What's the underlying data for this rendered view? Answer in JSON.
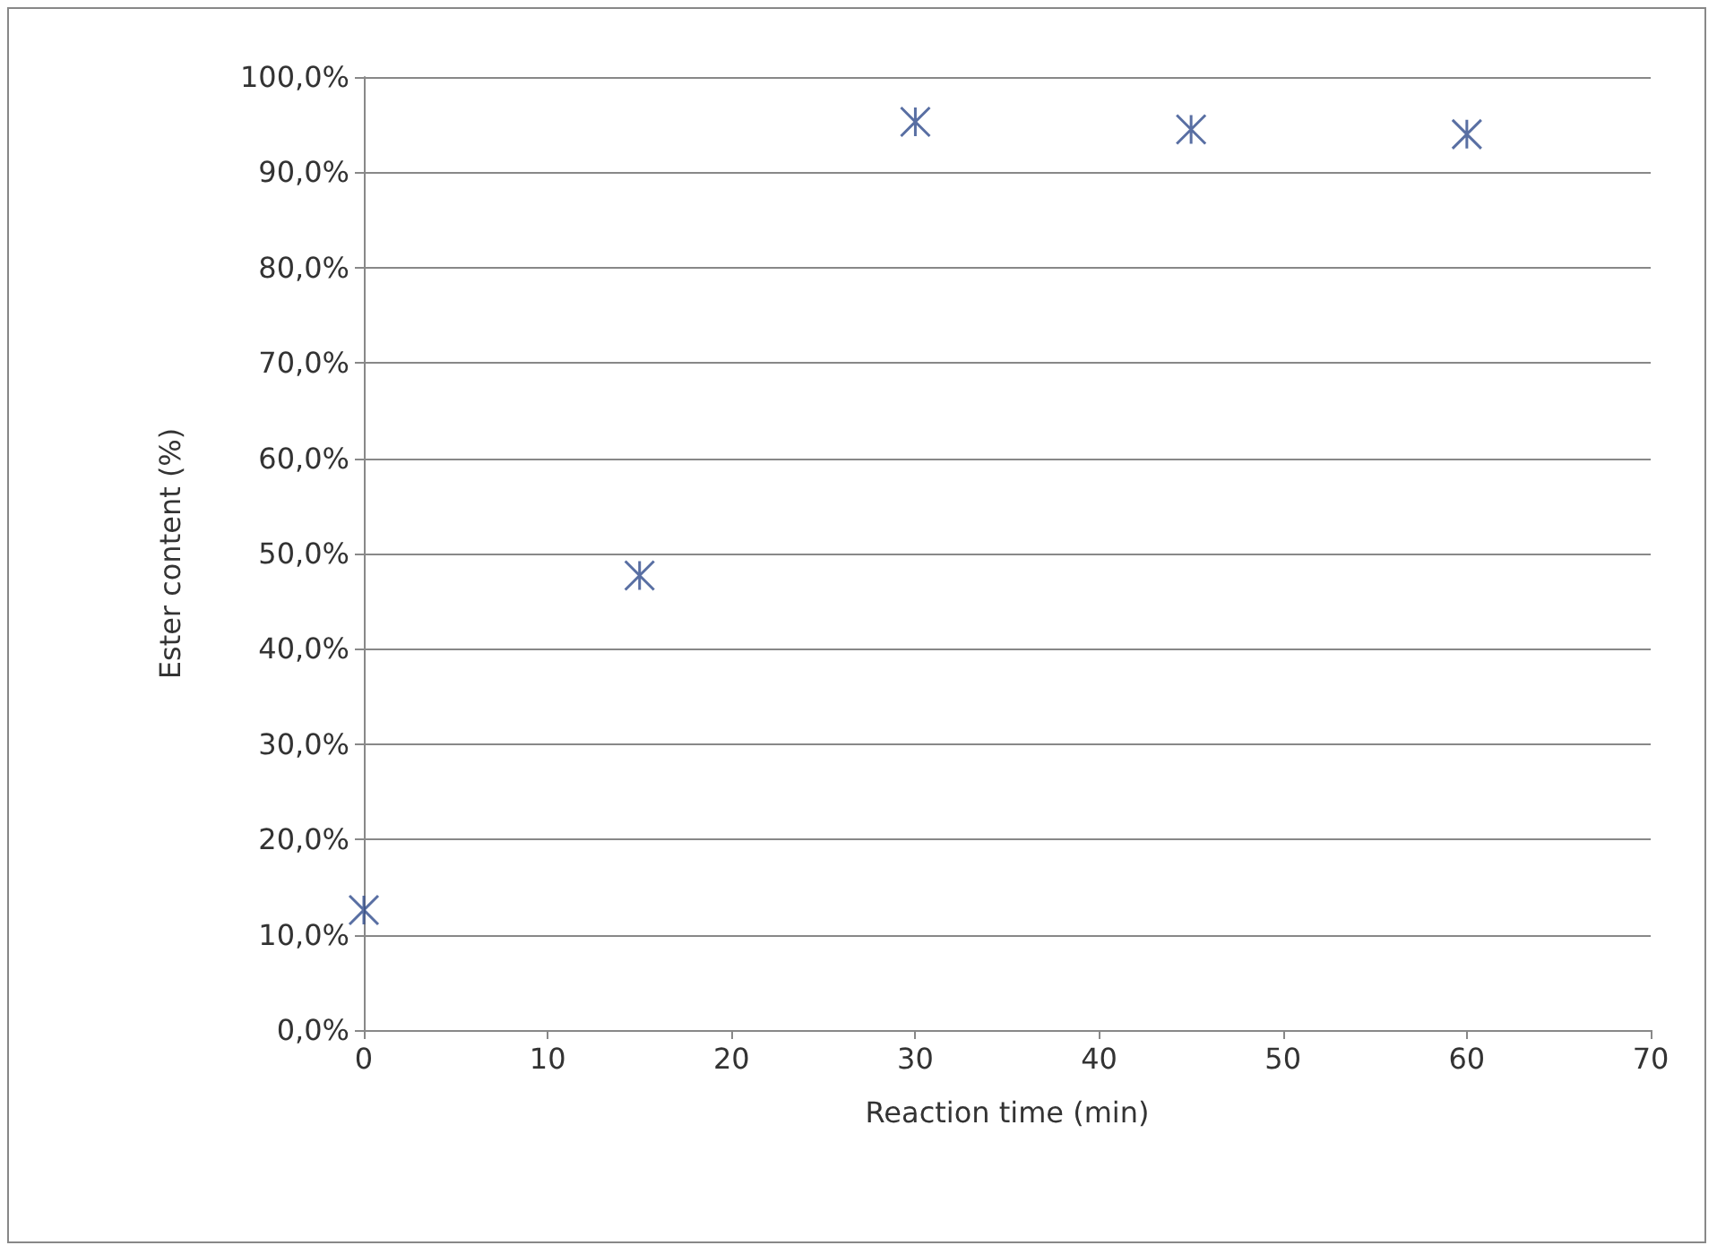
{
  "chart_data": {
    "type": "scatter",
    "xlabel": "Reaction time (min)",
    "ylabel": "Ester content (%)",
    "x": [
      0,
      15,
      30,
      45,
      60
    ],
    "values": [
      12.6,
      47.7,
      95.3,
      94.5,
      94.0
    ],
    "color": "#2f4b8c",
    "marker": "cross",
    "grid": "y",
    "xlim": [
      0,
      70
    ],
    "xticks": [
      0,
      10,
      20,
      30,
      40,
      50,
      60,
      70
    ],
    "ylim": [
      0,
      100
    ],
    "yticks": [
      {
        "value": 0,
        "label": "0,0%"
      },
      {
        "value": 10,
        "label": "10,0%"
      },
      {
        "value": 20,
        "label": "20,0%"
      },
      {
        "value": 30,
        "label": "30,0%"
      },
      {
        "value": 40,
        "label": "40,0%"
      },
      {
        "value": 50,
        "label": "50,0%"
      },
      {
        "value": 60,
        "label": "60,0%"
      },
      {
        "value": 70,
        "label": "70,0%"
      },
      {
        "value": 80,
        "label": "80,0%"
      },
      {
        "value": 90,
        "label": "90,0%"
      },
      {
        "value": 100,
        "label": "100,0%"
      }
    ]
  }
}
